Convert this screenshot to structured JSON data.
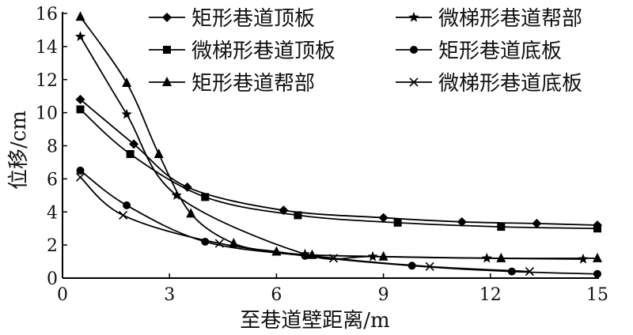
{
  "chart_data": {
    "type": "line",
    "xlabel": "至巷道壁距离/m",
    "ylabel": "位移/cm",
    "xlim": [
      0,
      15
    ],
    "ylim": [
      0,
      16
    ],
    "xticks": [
      0,
      3,
      6,
      9,
      12,
      15
    ],
    "yticks": [
      0,
      2,
      4,
      6,
      8,
      10,
      12,
      14,
      16
    ],
    "legend_position": "top-right",
    "grid": false,
    "series": [
      {
        "name": "矩形巷道顶板",
        "marker": "diamond",
        "x": [
          0.5,
          2.0,
          3.5,
          6.2,
          9.0,
          11.2,
          13.3,
          15.0
        ],
        "y": [
          10.8,
          8.1,
          5.5,
          4.1,
          3.65,
          3.4,
          3.3,
          3.2
        ]
      },
      {
        "name": "微梯形巷道顶板",
        "marker": "square",
        "x": [
          0.5,
          1.9,
          4.0,
          6.6,
          9.4,
          12.3,
          15.0
        ],
        "y": [
          10.2,
          7.5,
          4.9,
          3.8,
          3.35,
          3.1,
          3.0
        ]
      },
      {
        "name": "矩形巷道帮部",
        "marker": "triangle",
        "x": [
          0.5,
          1.8,
          2.7,
          3.6,
          4.8,
          6.0,
          7.0,
          9.0,
          12.3,
          15.0
        ],
        "y": [
          15.8,
          11.8,
          7.5,
          3.9,
          2.1,
          1.6,
          1.4,
          1.3,
          1.2,
          1.2
        ]
      },
      {
        "name": "微梯形巷道帮部",
        "marker": "star",
        "x": [
          0.5,
          1.8,
          3.2,
          6.8,
          8.7,
          11.9,
          14.6
        ],
        "y": [
          14.6,
          9.9,
          5.0,
          1.45,
          1.3,
          1.2,
          1.15
        ]
      },
      {
        "name": "矩形巷道底板",
        "marker": "circle",
        "x": [
          0.5,
          1.8,
          4.0,
          6.8,
          9.8,
          12.6,
          15.0
        ],
        "y": [
          6.5,
          4.4,
          2.2,
          1.35,
          0.75,
          0.4,
          0.25
        ]
      },
      {
        "name": "微梯形巷道底板",
        "marker": "x",
        "x": [
          0.5,
          1.7,
          4.4,
          7.6,
          10.3,
          13.1
        ],
        "y": [
          6.1,
          3.8,
          2.1,
          1.2,
          0.7,
          0.4
        ]
      }
    ]
  }
}
